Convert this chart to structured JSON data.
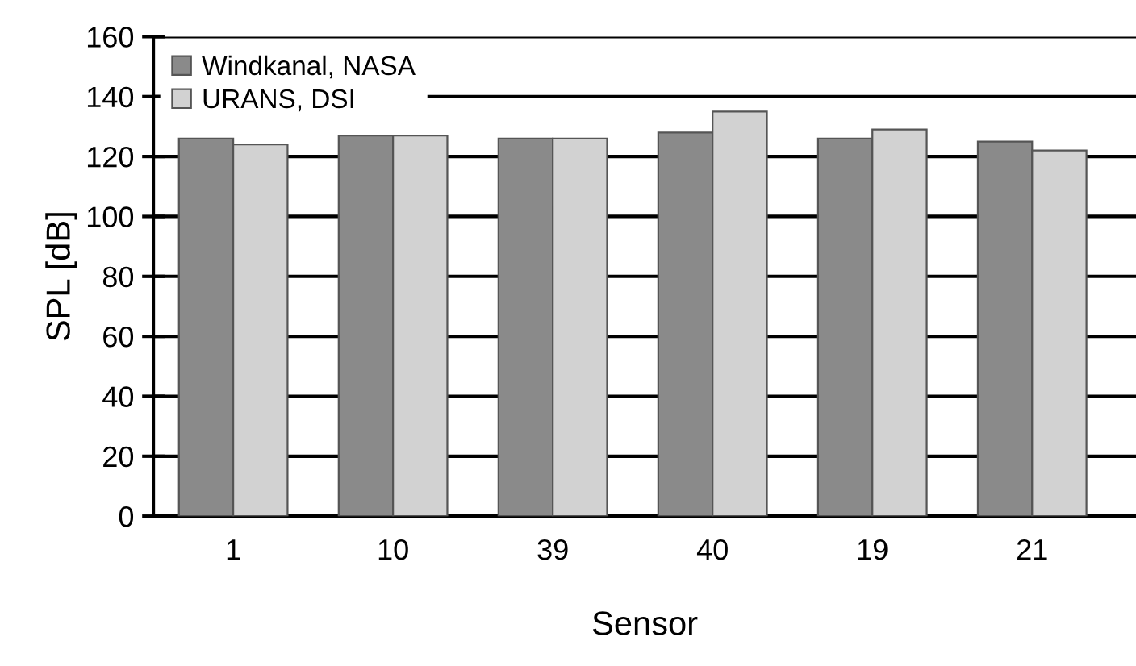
{
  "chart_data": {
    "type": "bar",
    "xlabel": "Sensor",
    "ylabel": "SPL [dB]",
    "categories": [
      "1",
      "10",
      "39",
      "40",
      "19",
      "21"
    ],
    "series": [
      {
        "name": "Windkanal, NASA",
        "color": "#8a8a8a",
        "values": [
          126,
          127,
          126,
          128,
          126,
          125
        ]
      },
      {
        "name": "URANS, DSI",
        "color": "#d2d2d2",
        "values": [
          124,
          127,
          126,
          135,
          129,
          122
        ]
      }
    ],
    "ylim": [
      0,
      160
    ],
    "yticks": [
      0,
      20,
      40,
      60,
      80,
      100,
      120,
      140,
      160
    ],
    "grid": "y",
    "legend": "top left"
  }
}
